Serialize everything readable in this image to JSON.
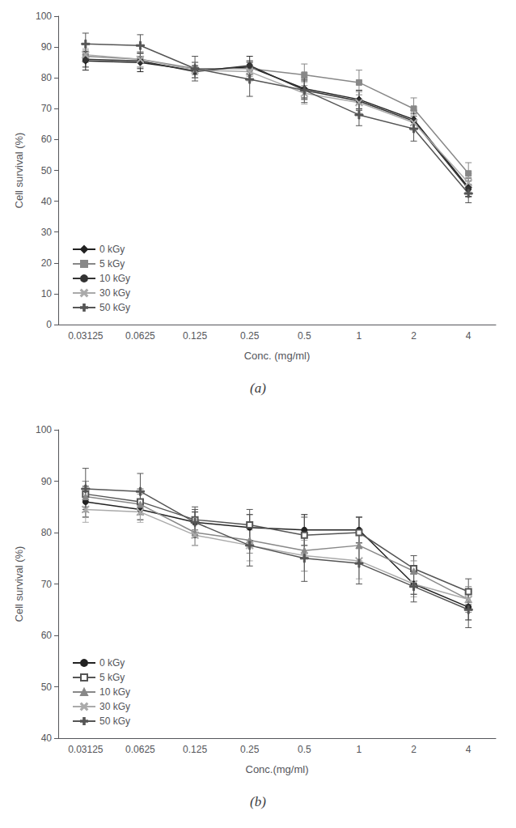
{
  "chart_data": [
    {
      "type": "line",
      "title": "(a)",
      "x_label": "Conc. (mg/ml)",
      "y_label": "Cell survival (%)",
      "categories": [
        "0.03125",
        "0.0625",
        "0.125",
        "0.25",
        "0.5",
        "1",
        "2",
        "4"
      ],
      "ylim": [
        0,
        100
      ],
      "yticks": [
        0,
        10,
        20,
        30,
        40,
        50,
        60,
        70,
        80,
        90,
        100
      ],
      "grid": false,
      "legend": "lower left",
      "series": [
        {
          "name": "0 kGy",
          "color": "#222222",
          "marker": "diamond",
          "line_style": "solid",
          "values": [
            85.5,
            85.0,
            82.5,
            83.5,
            76.5,
            73.0,
            66.5,
            44.5
          ],
          "errors": [
            3.0,
            3.0,
            2.5,
            2.0,
            3.0,
            3.0,
            3.0,
            3.0
          ]
        },
        {
          "name": "5 kGy",
          "color": "#888888",
          "marker": "square",
          "line_style": "solid",
          "values": [
            87.0,
            86.0,
            83.0,
            83.0,
            81.0,
            78.5,
            70.0,
            49.0
          ],
          "errors": [
            2.0,
            2.5,
            2.0,
            2.5,
            3.5,
            4.0,
            3.5,
            3.5
          ]
        },
        {
          "name": "10 kGy",
          "color": "#333333",
          "marker": "circle",
          "line_style": "solid",
          "values": [
            86.0,
            85.5,
            82.0,
            84.0,
            76.0,
            72.5,
            66.0,
            44.0
          ],
          "errors": [
            2.5,
            2.5,
            2.0,
            3.0,
            3.0,
            3.0,
            2.5,
            2.5
          ]
        },
        {
          "name": "30 kGy",
          "color": "#aaaaaa",
          "marker": "x",
          "line_style": "solid",
          "values": [
            87.5,
            86.0,
            82.5,
            82.0,
            75.0,
            72.0,
            65.5,
            46.0
          ],
          "errors": [
            2.0,
            2.5,
            2.5,
            3.0,
            3.5,
            3.5,
            2.5,
            3.0
          ]
        },
        {
          "name": "50 kGy",
          "color": "#555555",
          "marker": "plus",
          "line_style": "solid",
          "values": [
            91.0,
            90.5,
            83.0,
            79.5,
            76.0,
            68.0,
            63.5,
            42.5
          ],
          "errors": [
            3.5,
            3.5,
            4.0,
            5.5,
            4.0,
            3.5,
            4.0,
            3.0
          ]
        }
      ]
    },
    {
      "type": "line",
      "title": "(b)",
      "x_label": "Conc.(mg/ml)",
      "y_label": "Cell survival (%)",
      "categories": [
        "0.03125",
        "0.0625",
        "0.125",
        "0.25",
        "0.5",
        "1",
        "2",
        "4"
      ],
      "ylim": [
        40,
        100
      ],
      "yticks": [
        40,
        50,
        60,
        70,
        80,
        90,
        100
      ],
      "grid": false,
      "legend": "lower left",
      "series": [
        {
          "name": "0 kGy",
          "color": "#222222",
          "marker": "circle",
          "line_style": "solid",
          "values": [
            86.0,
            84.5,
            82.0,
            81.0,
            80.5,
            80.5,
            70.0,
            65.5
          ],
          "errors": [
            3.0,
            2.0,
            2.0,
            2.5,
            3.0,
            2.5,
            2.0,
            2.5
          ]
        },
        {
          "name": "5 kGy",
          "color": "#555555",
          "marker": "open_square",
          "line_style": "solid",
          "values": [
            87.5,
            86.0,
            82.5,
            81.5,
            79.5,
            80.0,
            73.0,
            68.5
          ],
          "errors": [
            2.5,
            2.5,
            2.0,
            3.0,
            3.5,
            3.0,
            2.5,
            2.5
          ]
        },
        {
          "name": "10 kGy",
          "color": "#888888",
          "marker": "triangle",
          "line_style": "solid",
          "values": [
            87.0,
            85.5,
            80.0,
            78.5,
            76.5,
            77.5,
            72.5,
            67.0
          ],
          "errors": [
            3.0,
            2.0,
            2.5,
            2.5,
            4.0,
            3.0,
            2.0,
            2.5
          ]
        },
        {
          "name": "30 kGy",
          "color": "#aaaaaa",
          "marker": "x",
          "line_style": "solid",
          "values": [
            84.5,
            84.0,
            79.5,
            77.5,
            75.5,
            74.5,
            70.0,
            67.0
          ],
          "errors": [
            2.5,
            2.0,
            2.0,
            3.0,
            3.0,
            3.5,
            2.5,
            2.0
          ]
        },
        {
          "name": "50 kGy",
          "color": "#555555",
          "marker": "plus",
          "line_style": "solid",
          "values": [
            88.5,
            88.0,
            82.0,
            77.5,
            75.0,
            74.0,
            69.5,
            65.0
          ],
          "errors": [
            4.0,
            3.5,
            3.0,
            4.0,
            4.5,
            4.0,
            3.0,
            3.5
          ]
        }
      ]
    }
  ]
}
